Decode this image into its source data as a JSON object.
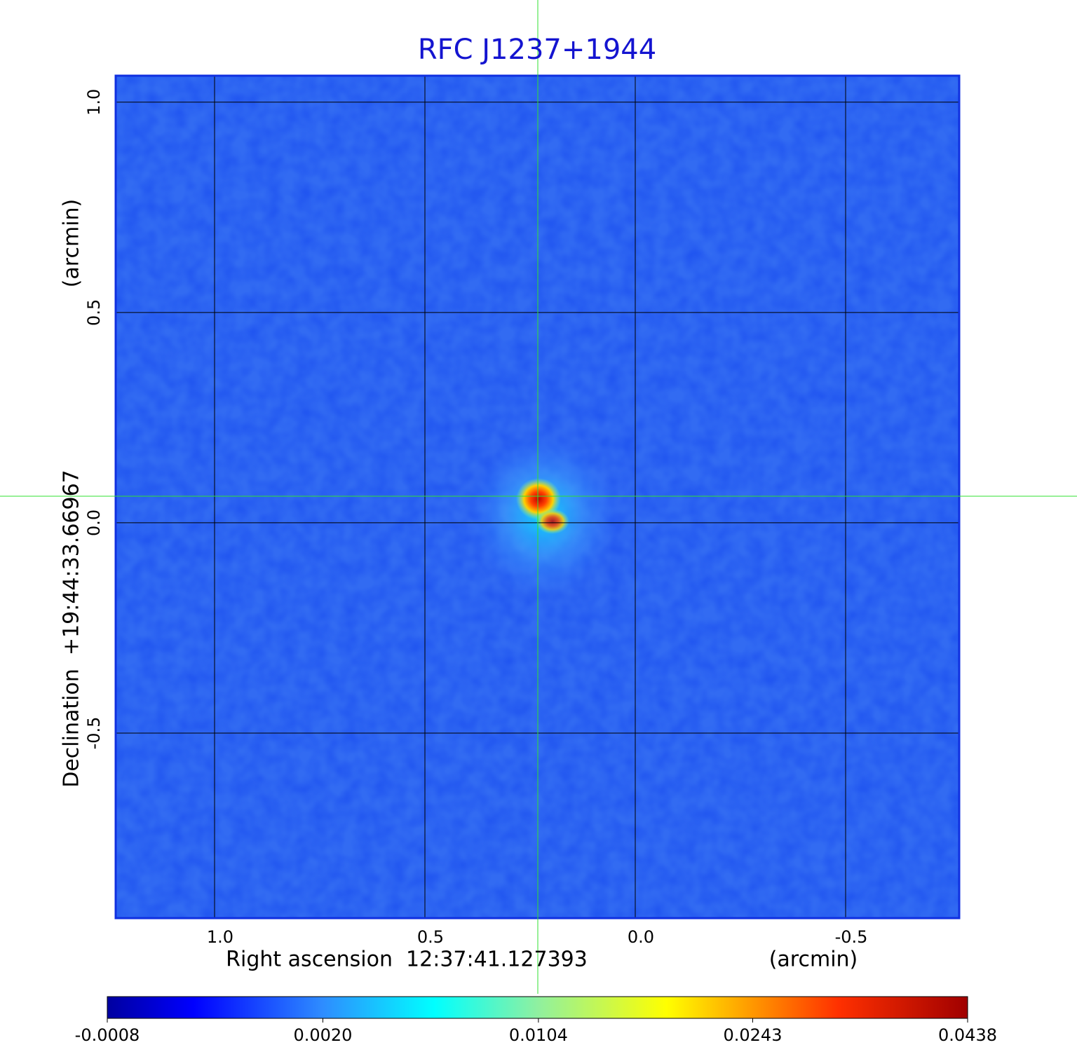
{
  "chart_data": {
    "type": "image",
    "title": "RFC J1237+1944",
    "xlabel": "Right ascension  12:37:41.127393",
    "xunit": "(arcmin)",
    "ylabel": "Declination  +19:44:33.66967",
    "yunit": "(arcmin)",
    "xlim": [
      1.235,
      -0.77
    ],
    "ylim": [
      -0.94,
      1.063
    ],
    "xticks": [
      {
        "value": 1,
        "label": "1.0"
      },
      0.5,
      {
        "value": 0,
        "label": "0.0"
      },
      -0.5
    ],
    "yticks": [
      {
        "value": 1,
        "label": "1.0"
      },
      0.5,
      {
        "value": 0,
        "label": "0.0"
      },
      -0.5
    ],
    "grid": true,
    "colorbar_scale": "sqrt",
    "colorbar_lim": [
      -0.0008,
      0.0438
    ],
    "colorbar_ticks": [
      -0.0008,
      {
        "value": 0.002,
        "label": "0.0020"
      },
      0.0104,
      0.0243,
      0.0438
    ]
  }
}
